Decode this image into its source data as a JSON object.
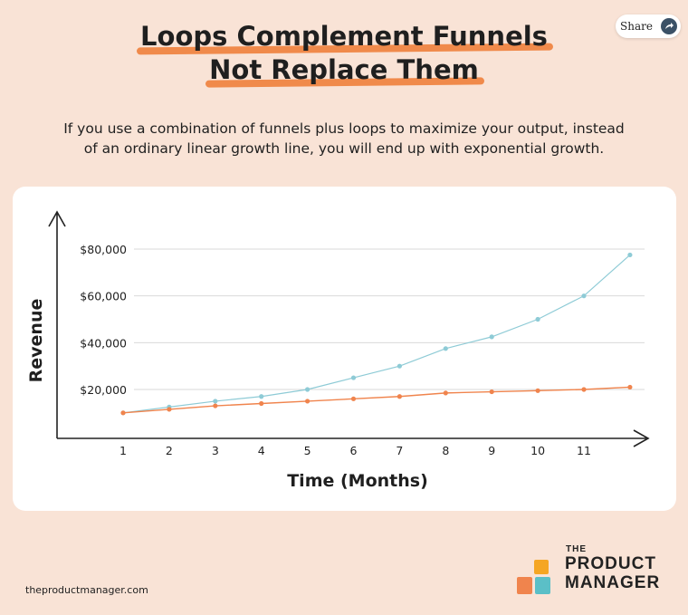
{
  "share": {
    "label": "Share"
  },
  "title": {
    "line1": "Loops Complement Funnels",
    "line2": "Not Replace Them"
  },
  "subtitle": {
    "line1": "If you use a combination of funnels plus loops to maximize your output, instead",
    "line2": "of an ordinary linear growth line, you will end up with exponential growth."
  },
  "chart_data": {
    "type": "line",
    "title": "",
    "xlabel": "Time (Months)",
    "ylabel": "Revenue",
    "x": [
      1,
      2,
      3,
      4,
      5,
      6,
      7,
      8,
      9,
      10,
      11,
      12
    ],
    "x_tick_labels": [
      "1",
      "2",
      "3",
      "4",
      "5",
      "6",
      "7",
      "8",
      "9",
      "10",
      "11"
    ],
    "y_ticks": [
      20000,
      40000,
      60000,
      80000
    ],
    "y_tick_labels": [
      "$20,000",
      "$40,000",
      "$60,000",
      "$80,000"
    ],
    "ylim": [
      0,
      90000
    ],
    "grid": true,
    "legend": "none",
    "series": [
      {
        "color": "#8ecbd6",
        "values": [
          10000,
          12500,
          15000,
          17000,
          20000,
          25000,
          30000,
          37500,
          42500,
          50000,
          60000,
          77500
        ]
      },
      {
        "color": "#f0844d",
        "values": [
          10000,
          11500,
          13000,
          14000,
          15000,
          16000,
          17000,
          18500,
          19000,
          19500,
          20000,
          21000
        ]
      }
    ]
  },
  "footer": {
    "url": "theproductmanager.com"
  },
  "logo": {
    "the": "THE",
    "line1": "PRODUCT",
    "line2": "MANAGER",
    "colors": [
      "#f0844d",
      "#f5a623",
      "#5bbfc7"
    ]
  }
}
